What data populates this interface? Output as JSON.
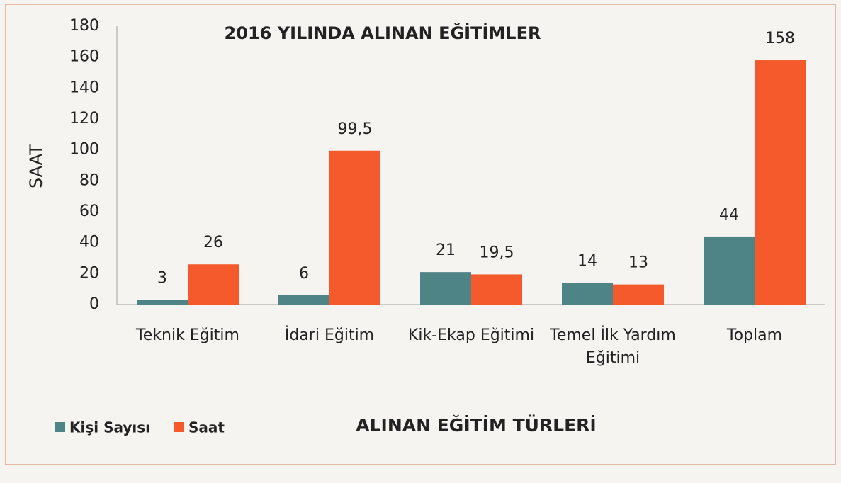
{
  "chart_data": {
    "type": "bar",
    "title": "2016 YILINDA ALINAN EĞİTİMLER",
    "x_label": "ALINAN EĞİTİM TÜRLERİ",
    "y_label": "SAAT",
    "categories": [
      "Teknik Eğitim",
      "İdari Eğitim",
      "Kik-Ekap Eğitimi",
      "Temel İlk Yardım Eğitimi",
      "Toplam"
    ],
    "series": [
      {
        "name": "Kişi Sayısı",
        "color": "#4f8487",
        "values": [
          3,
          6,
          21,
          14,
          44
        ]
      },
      {
        "name": "Saat",
        "color": "#f45a2b",
        "values": [
          26,
          99.5,
          19.5,
          13,
          158
        ],
        "value_labels": [
          "26",
          "99,5",
          "19,5",
          "13",
          "158"
        ]
      }
    ],
    "ylim": [
      0,
      180
    ],
    "yticks": [
      0,
      20,
      40,
      60,
      80,
      100,
      120,
      140,
      160,
      180
    ],
    "grid": false,
    "legend": "bottom-left"
  }
}
